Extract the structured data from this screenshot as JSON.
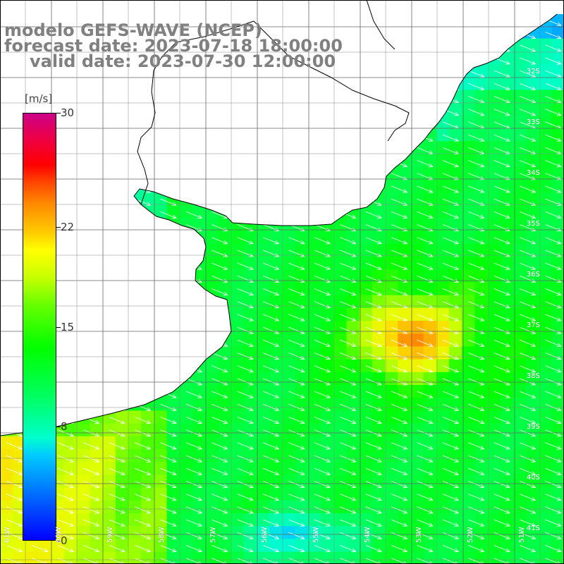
{
  "header": {
    "model_line": "modelo GEFS-WAVE (NCEP)",
    "forecast_line": "forecast date: 2023-07-18 18:00:00",
    "valid_line": "valid date: 2023-07-30 12:00:00"
  },
  "colorbar": {
    "unit": "[m/s]",
    "ticks": [
      "30",
      "22",
      "15",
      "8",
      "0"
    ],
    "tick_values": [
      30,
      22,
      15,
      8,
      0
    ],
    "range": [
      0,
      30
    ]
  },
  "map": {
    "lat_labels": [
      "32S",
      "33S",
      "34S",
      "35S",
      "36S",
      "37S",
      "38S",
      "39S",
      "40S",
      "41S"
    ],
    "lon_labels": [
      "61W",
      "60W",
      "59W",
      "58W",
      "57W",
      "56W",
      "55W",
      "54W",
      "53W",
      "52W",
      "51W"
    ],
    "land_color": "#ffffff",
    "grid_color": "#666666",
    "arrow_color": "#ffffff"
  }
}
